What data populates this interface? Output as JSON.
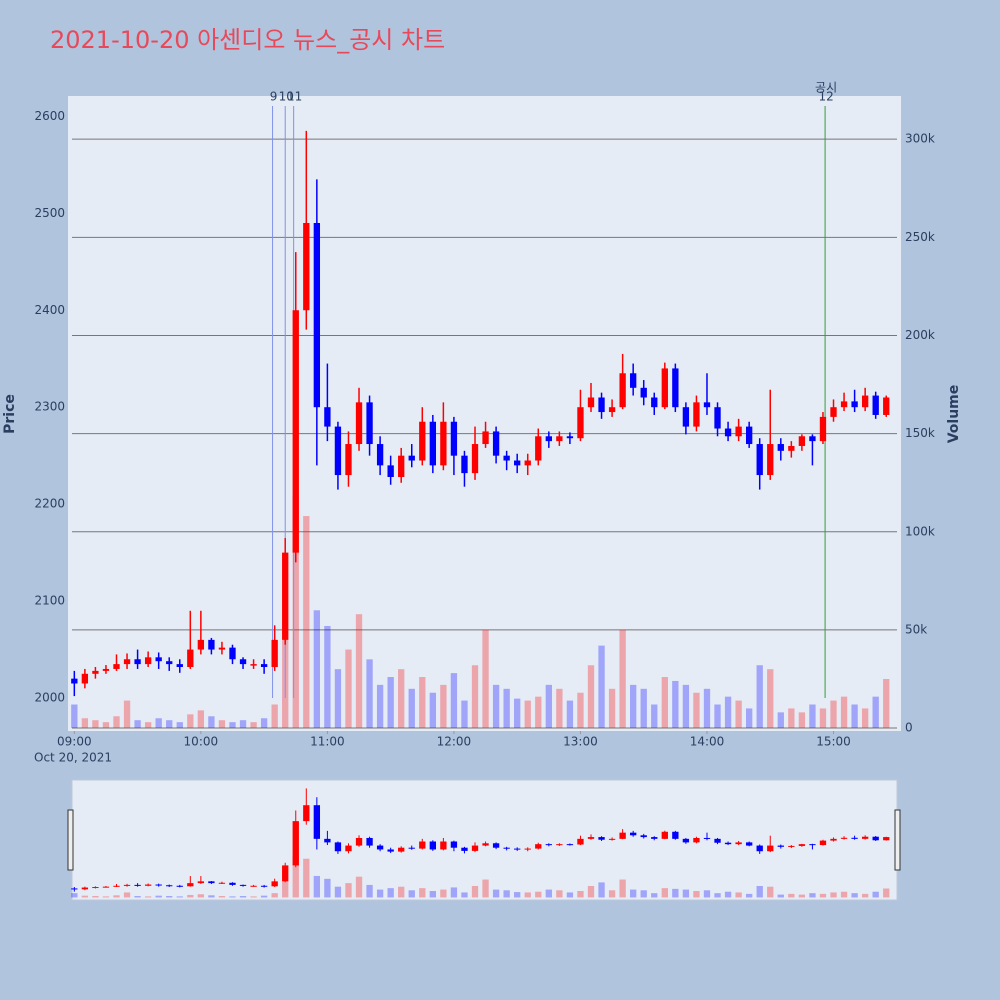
{
  "chart_data": {
    "type": "candlestick",
    "title": "2021-10-20 아센디오 뉴스_공시 차트",
    "y_title": "Price",
    "y2_title": "Volume",
    "x_date_label": "Oct 20, 2021",
    "up_color": "#ff0000",
    "down_color": "#0000ff",
    "grid": true,
    "rangeslider": true,
    "x": [
      "2021-10-20 09:00",
      "2021-10-20 09:05",
      "2021-10-20 09:10",
      "2021-10-20 09:15",
      "2021-10-20 09:20",
      "2021-10-20 09:25",
      "2021-10-20 09:30",
      "2021-10-20 09:35",
      "2021-10-20 09:40",
      "2021-10-20 09:45",
      "2021-10-20 09:50",
      "2021-10-20 09:55",
      "2021-10-20 10:00",
      "2021-10-20 10:05",
      "2021-10-20 10:10",
      "2021-10-20 10:15",
      "2021-10-20 10:20",
      "2021-10-20 10:25",
      "2021-10-20 10:30",
      "2021-10-20 10:35",
      "2021-10-20 10:40",
      "2021-10-20 10:45",
      "2021-10-20 10:50",
      "2021-10-20 10:55",
      "2021-10-20 11:00",
      "2021-10-20 11:05",
      "2021-10-20 11:10",
      "2021-10-20 11:15",
      "2021-10-20 11:20",
      "2021-10-20 11:25",
      "2021-10-20 11:30",
      "2021-10-20 11:35",
      "2021-10-20 11:40",
      "2021-10-20 11:45",
      "2021-10-20 11:50",
      "2021-10-20 11:55",
      "2021-10-20 12:00",
      "2021-10-20 12:05",
      "2021-10-20 12:10",
      "2021-10-20 12:15",
      "2021-10-20 12:20",
      "2021-10-20 12:25",
      "2021-10-20 12:30",
      "2021-10-20 12:35",
      "2021-10-20 12:40",
      "2021-10-20 12:45",
      "2021-10-20 12:50",
      "2021-10-20 12:55",
      "2021-10-20 13:00",
      "2021-10-20 13:05",
      "2021-10-20 13:10",
      "2021-10-20 13:15",
      "2021-10-20 13:20",
      "2021-10-20 13:25",
      "2021-10-20 13:30",
      "2021-10-20 13:35",
      "2021-10-20 13:40",
      "2021-10-20 13:45",
      "2021-10-20 13:50",
      "2021-10-20 13:55",
      "2021-10-20 14:00",
      "2021-10-20 14:05",
      "2021-10-20 14:10",
      "2021-10-20 14:15",
      "2021-10-20 14:20",
      "2021-10-20 14:25",
      "2021-10-20 14:30",
      "2021-10-20 14:35",
      "2021-10-20 14:40",
      "2021-10-20 14:45",
      "2021-10-20 14:50",
      "2021-10-20 14:55",
      "2021-10-20 15:00",
      "2021-10-20 15:05",
      "2021-10-20 15:10",
      "2021-10-20 15:15",
      "2021-10-20 15:20",
      "2021-10-20 15:25"
    ],
    "open": [
      2020,
      2015,
      2025,
      2028,
      2030,
      2035,
      2040,
      2035,
      2042,
      2038,
      2035,
      2032,
      2050,
      2060,
      2050,
      2052,
      2040,
      2035,
      2035,
      2032,
      2060,
      2150,
      2400,
      2490,
      2300,
      2280,
      2230,
      2262,
      2305,
      2262,
      2240,
      2228,
      2250,
      2245,
      2285,
      2240,
      2285,
      2250,
      2232,
      2262,
      2275,
      2250,
      2245,
      2240,
      2245,
      2270,
      2265,
      2270,
      2268,
      2300,
      2310,
      2295,
      2300,
      2335,
      2320,
      2310,
      2300,
      2340,
      2300,
      2280,
      2305,
      2300,
      2278,
      2270,
      2280,
      2262,
      2230,
      2262,
      2255,
      2260,
      2270,
      2265,
      2290,
      2300,
      2306,
      2300,
      2312,
      2292
    ],
    "high": [
      2028,
      2030,
      2032,
      2034,
      2045,
      2046,
      2050,
      2048,
      2047,
      2042,
      2040,
      2090,
      2090,
      2062,
      2058,
      2055,
      2042,
      2040,
      2040,
      2075,
      2165,
      2460,
      2585,
      2535,
      2345,
      2285,
      2275,
      2320,
      2312,
      2270,
      2250,
      2258,
      2262,
      2300,
      2292,
      2305,
      2290,
      2255,
      2280,
      2285,
      2280,
      2255,
      2252,
      2252,
      2278,
      2275,
      2275,
      2274,
      2318,
      2325,
      2315,
      2308,
      2355,
      2345,
      2328,
      2315,
      2346,
      2345,
      2305,
      2312,
      2335,
      2305,
      2285,
      2288,
      2285,
      2268,
      2318,
      2268,
      2265,
      2272,
      2272,
      2295,
      2308,
      2315,
      2318,
      2320,
      2316,
      2312
    ],
    "low": [
      2002,
      2010,
      2020,
      2025,
      2028,
      2030,
      2030,
      2032,
      2030,
      2028,
      2026,
      2030,
      2045,
      2045,
      2045,
      2035,
      2030,
      2030,
      2025,
      2028,
      2055,
      2140,
      2380,
      2240,
      2265,
      2215,
      2218,
      2255,
      2250,
      2230,
      2220,
      2222,
      2238,
      2240,
      2232,
      2235,
      2230,
      2218,
      2225,
      2258,
      2242,
      2235,
      2232,
      2230,
      2240,
      2258,
      2260,
      2262,
      2265,
      2295,
      2288,
      2290,
      2298,
      2312,
      2302,
      2292,
      2298,
      2295,
      2272,
      2275,
      2292,
      2270,
      2265,
      2265,
      2258,
      2215,
      2225,
      2245,
      2248,
      2255,
      2240,
      2262,
      2285,
      2296,
      2295,
      2296,
      2288,
      2290
    ],
    "close": [
      2015,
      2025,
      2028,
      2030,
      2035,
      2040,
      2035,
      2042,
      2038,
      2035,
      2032,
      2050,
      2060,
      2050,
      2052,
      2040,
      2035,
      2035,
      2032,
      2060,
      2150,
      2400,
      2490,
      2300,
      2280,
      2230,
      2262,
      2305,
      2262,
      2240,
      2228,
      2250,
      2245,
      2285,
      2240,
      2285,
      2250,
      2232,
      2262,
      2275,
      2250,
      2245,
      2240,
      2245,
      2270,
      2265,
      2270,
      2268,
      2300,
      2310,
      2295,
      2300,
      2335,
      2320,
      2310,
      2300,
      2340,
      2300,
      2280,
      2305,
      2300,
      2278,
      2270,
      2280,
      2262,
      2230,
      2262,
      2255,
      2260,
      2270,
      2265,
      2290,
      2300,
      2306,
      2300,
      2312,
      2292,
      2310
    ],
    "volume": [
      12000,
      5000,
      4000,
      3000,
      6000,
      14000,
      4000,
      3000,
      5000,
      4000,
      3000,
      7000,
      9000,
      6000,
      4000,
      3000,
      4000,
      3000,
      5000,
      12000,
      45000,
      118000,
      108000,
      60000,
      52000,
      30000,
      40000,
      58000,
      35000,
      22000,
      26000,
      30000,
      20000,
      26000,
      18000,
      22000,
      28000,
      14000,
      32000,
      50000,
      22000,
      20000,
      15000,
      14000,
      16000,
      22000,
      20000,
      14000,
      18000,
      32000,
      42000,
      20000,
      50000,
      22000,
      20000,
      12000,
      26000,
      24000,
      22000,
      18000,
      20000,
      12000,
      16000,
      14000,
      10000,
      32000,
      30000,
      8000,
      10000,
      8000,
      12000,
      10000,
      14000,
      16000,
      12000,
      10000,
      16000,
      25000
    ],
    "xlim": [
      "2021-10-20 08:57",
      "2021-10-20 15:32"
    ],
    "xticks": [
      {
        "value": "2021-10-20 09:00",
        "label": "09:00"
      },
      {
        "value": "2021-10-20 10:00",
        "label": "10:00"
      },
      {
        "value": "2021-10-20 11:00",
        "label": "11:00"
      },
      {
        "value": "2021-10-20 12:00",
        "label": "12:00"
      },
      {
        "value": "2021-10-20 13:00",
        "label": "13:00"
      },
      {
        "value": "2021-10-20 14:00",
        "label": "14:00"
      },
      {
        "value": "2021-10-20 15:00",
        "label": "15:00"
      }
    ],
    "ylim": [
      1966,
      2621
    ],
    "yticks": [
      2000,
      2100,
      2200,
      2300,
      2400,
      2500,
      2600
    ],
    "y2lim": [
      -1500,
      322000
    ],
    "y2ticks": [
      0,
      {
        "value": 50000,
        "label": "50k"
      },
      {
        "value": 100000,
        "label": "100k"
      },
      {
        "value": 150000,
        "label": "150k"
      },
      {
        "value": 200000,
        "label": "200k"
      },
      {
        "value": 250000,
        "label": "250k"
      },
      {
        "value": 300000,
        "label": "300k"
      }
    ],
    "markers": [
      {
        "x": "2021-10-20 10:34",
        "label": "9",
        "color": "#8090e8"
      },
      {
        "x": "2021-10-20 10:40",
        "label": "10",
        "color": "#8090e8"
      },
      {
        "x": "2021-10-20 10:44",
        "label": "11",
        "color": "#8090e8"
      },
      {
        "x": "2021-10-20 14:56",
        "label": "12",
        "text": "공시",
        "color": "#3a9a3a"
      }
    ]
  }
}
